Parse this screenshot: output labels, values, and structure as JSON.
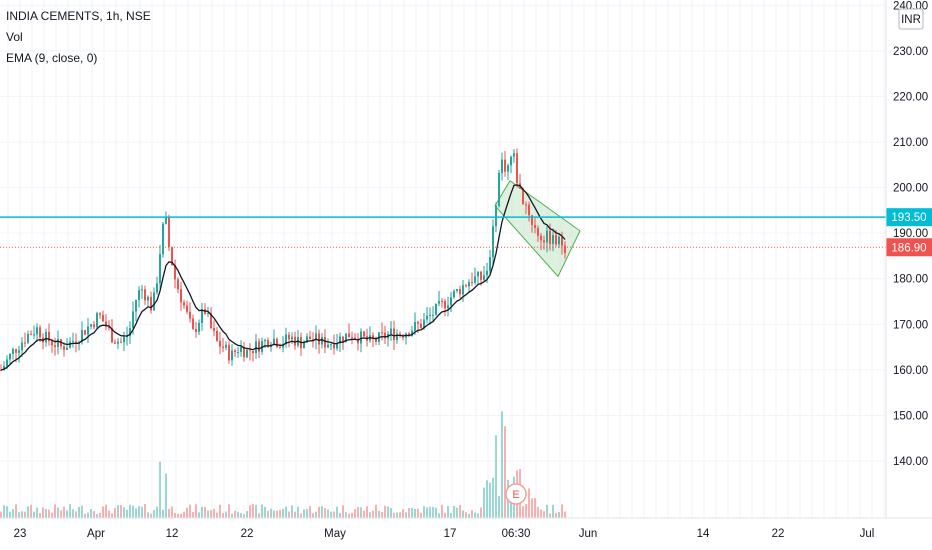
{
  "legend": {
    "title": "INDIA CEMENTS, 1h, NSE",
    "vol": "Vol",
    "ema": "EMA (9, close, 0)"
  },
  "currency_badge": "INR",
  "earnings_marker": "E",
  "colors": {
    "up": "#26a69a",
    "down": "#ef5350",
    "ema": "#131722",
    "hline": "#00bcd4",
    "price_badge": "#ef5350",
    "channel_fill": "#c8e6c9",
    "channel_stroke": "#4caf50",
    "grid": "#f0f3fa"
  },
  "chart_data": {
    "type": "candlestick",
    "y_axis_labels": [
      "240.00",
      "230.00",
      "220.00",
      "210.00",
      "200.00",
      "190.00",
      "180.00",
      "170.00",
      "160.00",
      "150.00",
      "140.00"
    ],
    "x_axis_labels": [
      "23",
      "Apr",
      "12",
      "22",
      "May",
      "17",
      "06:30",
      "Jun",
      "14",
      "22",
      "Jul"
    ],
    "ylim": [
      131,
      240.5
    ],
    "price_lines": [
      {
        "label": "193.50",
        "value": 193.5,
        "style": "solid"
      },
      {
        "label": "186.90",
        "value": 186.9,
        "style": "dotted"
      }
    ],
    "channel": {
      "upper": [
        [
          0.0,
          196.0
        ],
        [
          1.0,
          191.0
        ]
      ],
      "lower": [
        [
          0.0,
          186.0
        ],
        [
          1.0,
          180.5
        ]
      ],
      "note": "descending channel drawn over last segment"
    },
    "ema_period": 9,
    "price_path": [
      [
        0,
        160
      ],
      [
        6,
        162
      ],
      [
        12,
        164
      ],
      [
        20,
        166
      ],
      [
        28,
        168
      ],
      [
        36,
        169
      ],
      [
        44,
        167
      ],
      [
        52,
        166
      ],
      [
        60,
        165
      ],
      [
        70,
        166
      ],
      [
        80,
        168
      ],
      [
        90,
        170
      ],
      [
        98,
        172
      ],
      [
        104,
        170
      ],
      [
        112,
        167
      ],
      [
        120,
        166
      ],
      [
        128,
        168
      ],
      [
        134,
        175
      ],
      [
        140,
        178
      ],
      [
        146,
        176
      ],
      [
        150,
        174
      ],
      [
        154,
        176
      ],
      [
        160,
        188
      ],
      [
        164,
        194
      ],
      [
        168,
        187
      ],
      [
        174,
        180
      ],
      [
        180,
        176
      ],
      [
        186,
        172
      ],
      [
        192,
        168
      ],
      [
        198,
        171
      ],
      [
        204,
        173
      ],
      [
        210,
        169
      ],
      [
        216,
        166
      ],
      [
        222,
        165
      ],
      [
        230,
        163
      ],
      [
        238,
        165
      ],
      [
        246,
        164
      ],
      [
        254,
        165
      ],
      [
        262,
        166
      ],
      [
        270,
        167
      ],
      [
        280,
        166
      ],
      [
        290,
        167
      ],
      [
        300,
        166
      ],
      [
        310,
        167
      ],
      [
        320,
        166
      ],
      [
        330,
        166
      ],
      [
        340,
        167
      ],
      [
        350,
        168
      ],
      [
        360,
        167
      ],
      [
        370,
        166
      ],
      [
        380,
        167
      ],
      [
        390,
        168
      ],
      [
        400,
        168
      ],
      [
        410,
        169
      ],
      [
        420,
        170
      ],
      [
        430,
        172
      ],
      [
        440,
        174
      ],
      [
        450,
        176
      ],
      [
        460,
        178
      ],
      [
        470,
        180
      ],
      [
        480,
        180
      ],
      [
        486,
        182
      ],
      [
        492,
        190
      ],
      [
        496,
        200
      ],
      [
        500,
        206
      ],
      [
        506,
        204
      ],
      [
        512,
        208
      ],
      [
        516,
        202
      ],
      [
        520,
        198
      ],
      [
        526,
        196
      ],
      [
        530,
        193
      ],
      [
        536,
        190
      ],
      [
        542,
        189
      ],
      [
        548,
        189
      ],
      [
        554,
        188
      ],
      [
        560,
        188
      ],
      [
        565,
        187
      ]
    ],
    "volume_spikes": [
      [
        160,
        0.38
      ],
      [
        165,
        0.3
      ],
      [
        496,
        0.56
      ],
      [
        500,
        0.72
      ],
      [
        504,
        0.62
      ],
      [
        512,
        0.28
      ],
      [
        516,
        0.18
      ]
    ]
  }
}
